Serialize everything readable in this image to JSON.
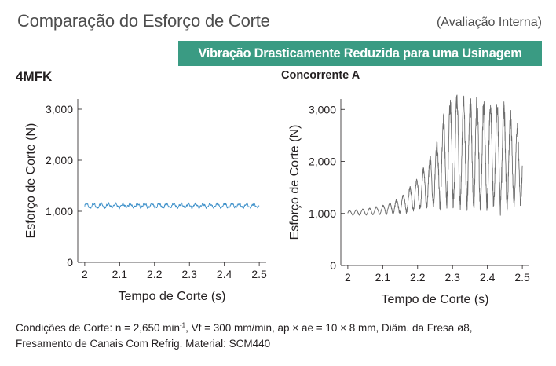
{
  "header": {
    "title": "Comparação do Esforço de Corte",
    "note": "(Avaliação Interna)",
    "banner": "Vibração Drasticamente Reduzida para uma Usinagem Estável",
    "banner_color": "#3a9b83"
  },
  "chart_data": [
    {
      "type": "line",
      "panel_label": "4MFK",
      "xlabel": "Tempo de Corte (s)",
      "ylabel": "Esforço de Corte (N)",
      "xlim": [
        1.98,
        2.52
      ],
      "ylim": [
        0,
        3200
      ],
      "x_ticks": [
        2,
        2.1,
        2.2,
        2.3,
        2.4,
        2.5
      ],
      "x_tick_labels": [
        "2",
        "2.1",
        "2.2",
        "2.3",
        "2.4",
        "2.5"
      ],
      "y_ticks": [
        0,
        1000,
        2000,
        3000
      ],
      "y_tick_labels": [
        "0",
        "1,000",
        "2,000",
        "3,000"
      ],
      "grid": false,
      "series": [
        {
          "color": "#3b8fc9",
          "signal": {
            "x_start": 2.0,
            "x_end": 2.5,
            "mean": 1110,
            "amplitude": 45,
            "cycles": 24,
            "noise": 15
          }
        }
      ]
    },
    {
      "type": "line",
      "panel_label": "Concorrente A",
      "xlabel": "Tempo de Corte (s)",
      "ylabel": "Esforço de Corte (N)",
      "xlim": [
        1.98,
        2.52
      ],
      "ylim": [
        0,
        3200
      ],
      "x_ticks": [
        2,
        2.1,
        2.2,
        2.3,
        2.4,
        2.5
      ],
      "x_tick_labels": [
        "2",
        "2.1",
        "2.2",
        "2.3",
        "2.4",
        "2.5"
      ],
      "y_ticks": [
        0,
        1000,
        2000,
        3000
      ],
      "y_tick_labels": [
        "0",
        "1,000",
        "2,000",
        "3,000"
      ],
      "grid": false,
      "series": [
        {
          "color": "#6d6d6d",
          "envelope": {
            "x": [
              2.0,
              2.05,
              2.1,
              2.15,
              2.2,
              2.25,
              2.28,
              2.3,
              2.35,
              2.4,
              2.45,
              2.5
            ],
            "high": [
              1060,
              1090,
              1160,
              1300,
              1700,
              2300,
              3050,
              3350,
              3300,
              3200,
              3150,
              2600
            ],
            "low": [
              960,
              960,
              970,
              990,
              1020,
              1080,
              1050,
              1000,
              1000,
              990,
              980,
              1100
            ]
          },
          "cycles": 26
        }
      ]
    }
  ],
  "footer": {
    "line1_a": "Condições de Corte: n = 2,650 min",
    "line1_sup": "-1",
    "line1_b": ",  Vf = 300 mm/min,  ap × ae = 10 × 8 mm,  Diâm. da Fresa ø8,",
    "line2": "Fresamento de Canais  Com Refrig.  Material: SCM440"
  }
}
